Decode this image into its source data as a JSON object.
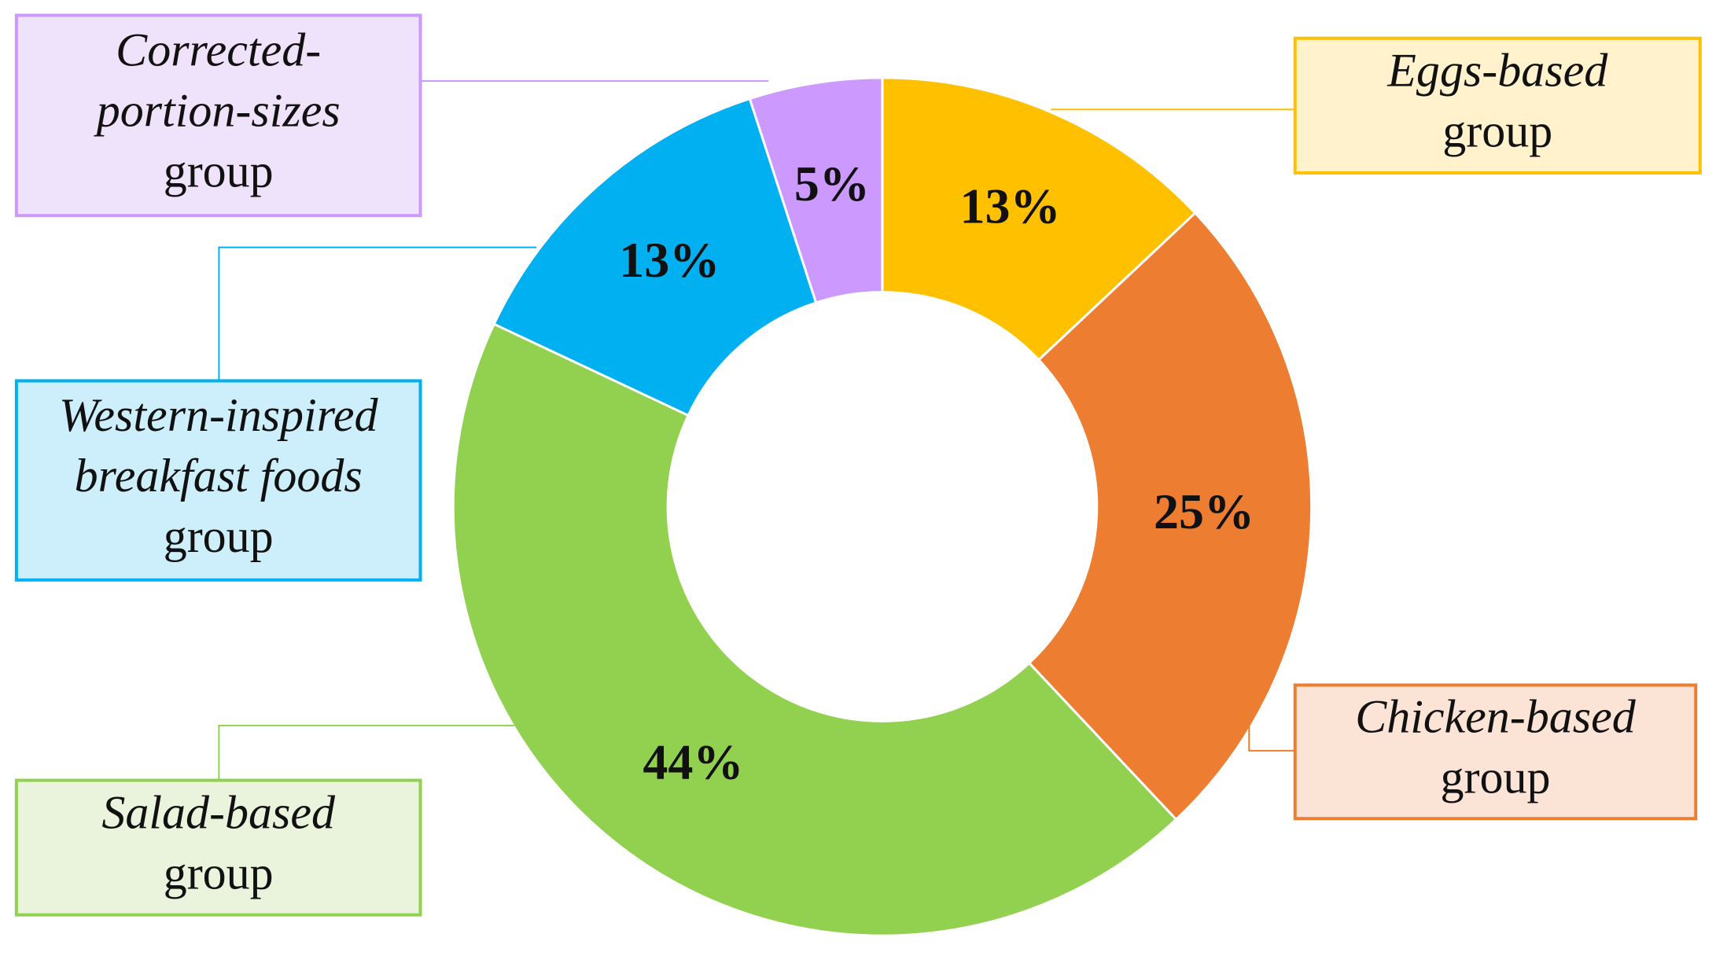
{
  "chart_data": {
    "type": "donut",
    "categories": [
      [
        "Eggs-based",
        "group"
      ],
      [
        "Chicken-based",
        "group"
      ],
      [
        "Salad-based",
        "group"
      ],
      [
        "Western-inspired",
        "breakfast foods",
        "group"
      ],
      [
        "Corrected-",
        "portion-sizes",
        "group"
      ]
    ],
    "values": [
      13,
      25,
      44,
      13,
      5
    ],
    "value_labels": [
      "13%",
      "25%",
      "44%",
      "13%",
      "5%"
    ],
    "colors": [
      "#ffc000",
      "#ed7d31",
      "#92d050",
      "#00b0f0",
      "#cc99ff"
    ]
  }
}
